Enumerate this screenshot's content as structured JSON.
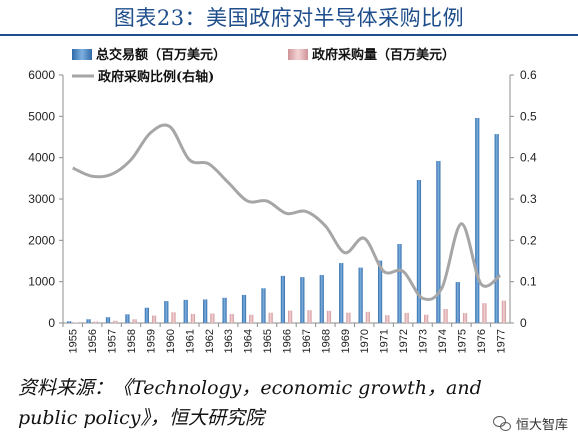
{
  "page": {
    "title": "图表23：美国政府对半导体采购比例",
    "source": "资料来源：《Technology，economic growth，and public policy》，恒大研究院",
    "watermark": "恒大智库",
    "watermark_icon": "wechat-icon"
  },
  "chart_data": {
    "type": "bar",
    "title": "图表23：美国政府对半导体采购比例",
    "categories": [
      "1955",
      "1956",
      "1957",
      "1958",
      "1959",
      "1960",
      "1961",
      "1962",
      "1963",
      "1964",
      "1965",
      "1966",
      "1967",
      "1968",
      "1969",
      "1970",
      "1971",
      "1972",
      "1973",
      "1974",
      "1975",
      "1976",
      "1977"
    ],
    "series": [
      {
        "name": "总交易额（百万美元）",
        "axis": "left",
        "kind": "bar",
        "color": "#4a86c5",
        "values": [
          40,
          90,
          140,
          210,
          370,
          530,
          560,
          570,
          610,
          680,
          840,
          1140,
          1110,
          1160,
          1450,
          1340,
          1510,
          1910,
          3460,
          3920,
          990,
          4960,
          4570
        ]
      },
      {
        "name": "政府采购量（百万美元）",
        "axis": "left",
        "kind": "bar",
        "color": "#e3b2b5",
        "values": [
          15,
          35,
          55,
          90,
          180,
          260,
          220,
          230,
          220,
          200,
          250,
          300,
          310,
          295,
          250,
          270,
          190,
          245,
          200,
          340,
          240,
          480,
          540
        ]
      },
      {
        "name": "政府采购比例(右轴)",
        "axis": "right",
        "kind": "line",
        "color": "#a6a6a6",
        "values": [
          0.375,
          0.355,
          0.36,
          0.395,
          0.46,
          0.475,
          0.395,
          0.385,
          0.34,
          0.295,
          0.295,
          0.265,
          0.27,
          0.235,
          0.17,
          0.205,
          0.125,
          0.125,
          0.06,
          0.085,
          0.24,
          0.095,
          0.115
        ]
      }
    ],
    "y_left": {
      "min": 0,
      "max": 6000,
      "ticks": [
        0,
        1000,
        2000,
        3000,
        4000,
        5000,
        6000
      ]
    },
    "y_right": {
      "min": 0,
      "max": 0.6,
      "ticks": [
        "0",
        "0.1",
        "0.2",
        "0.3",
        "0.4",
        "0.5",
        "0.6"
      ]
    },
    "legend_position": "top-left",
    "grid": false
  }
}
